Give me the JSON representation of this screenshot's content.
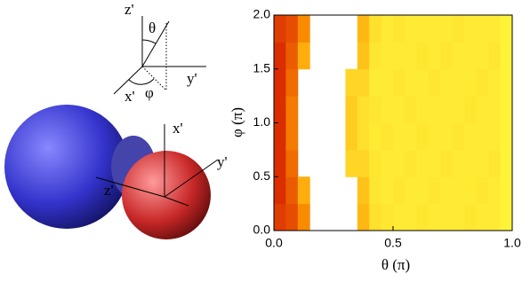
{
  "illustration": {
    "labels": [
      "z'",
      "θ",
      "y'",
      "x'",
      "φ",
      "x'",
      "y'",
      "z'"
    ]
  },
  "chart_data": {
    "type": "heatmap",
    "xlabel": "θ (π)",
    "ylabel": "φ (π)",
    "xlim": [
      0,
      1
    ],
    "ylim": [
      0,
      2
    ],
    "xticks": [
      {
        "value": 0,
        "label": "0.0"
      },
      0.5,
      {
        "value": 1,
        "label": "1.0"
      }
    ],
    "yticks": [
      {
        "value": 0,
        "label": "0.0"
      },
      0.5,
      {
        "value": 1,
        "label": "1.0"
      },
      1.5,
      {
        "value": 2,
        "label": "2.0"
      }
    ],
    "colorscale": [
      "#ffff40",
      "#ff9900",
      "#cc0000"
    ],
    "z": [
      [
        0.8,
        0.75,
        0.55,
        null,
        null,
        null,
        null,
        0.35,
        0.15,
        0.12,
        0.1,
        0.1,
        0.12,
        0.1,
        0.1,
        0.1,
        0.12,
        0.1,
        0.1,
        0.06
      ],
      [
        0.85,
        0.7,
        0.4,
        null,
        null,
        null,
        null,
        0.3,
        0.12,
        0.1,
        0.12,
        0.1,
        0.1,
        0.12,
        0.1,
        0.1,
        0.1,
        0.12,
        0.1,
        0.06
      ],
      [
        0.85,
        0.65,
        null,
        null,
        null,
        null,
        0.2,
        0.2,
        0.12,
        0.1,
        0.1,
        0.12,
        0.1,
        0.1,
        0.12,
        0.1,
        0.1,
        0.1,
        0.12,
        0.06
      ],
      [
        0.85,
        0.6,
        null,
        null,
        null,
        null,
        0.25,
        0.15,
        0.1,
        0.12,
        0.1,
        0.1,
        0.12,
        0.1,
        0.1,
        0.12,
        0.1,
        0.1,
        0.1,
        0.06
      ],
      [
        0.85,
        0.6,
        null,
        null,
        null,
        null,
        0.25,
        0.15,
        0.12,
        0.1,
        0.1,
        0.12,
        0.1,
        0.1,
        0.1,
        0.1,
        0.12,
        0.1,
        0.1,
        0.06
      ],
      [
        0.85,
        0.65,
        null,
        null,
        null,
        null,
        0.2,
        0.2,
        0.1,
        0.1,
        0.12,
        0.1,
        0.1,
        0.12,
        0.1,
        0.1,
        0.1,
        0.12,
        0.1,
        0.06
      ],
      [
        0.85,
        0.7,
        0.4,
        null,
        null,
        null,
        null,
        0.3,
        0.12,
        0.1,
        0.1,
        0.1,
        0.12,
        0.1,
        0.12,
        0.1,
        0.1,
        0.1,
        0.12,
        0.06
      ],
      [
        0.8,
        0.75,
        0.55,
        null,
        null,
        null,
        null,
        0.35,
        0.15,
        0.1,
        0.12,
        0.1,
        0.1,
        0.1,
        0.1,
        0.12,
        0.1,
        0.1,
        0.1,
        0.06
      ]
    ]
  }
}
